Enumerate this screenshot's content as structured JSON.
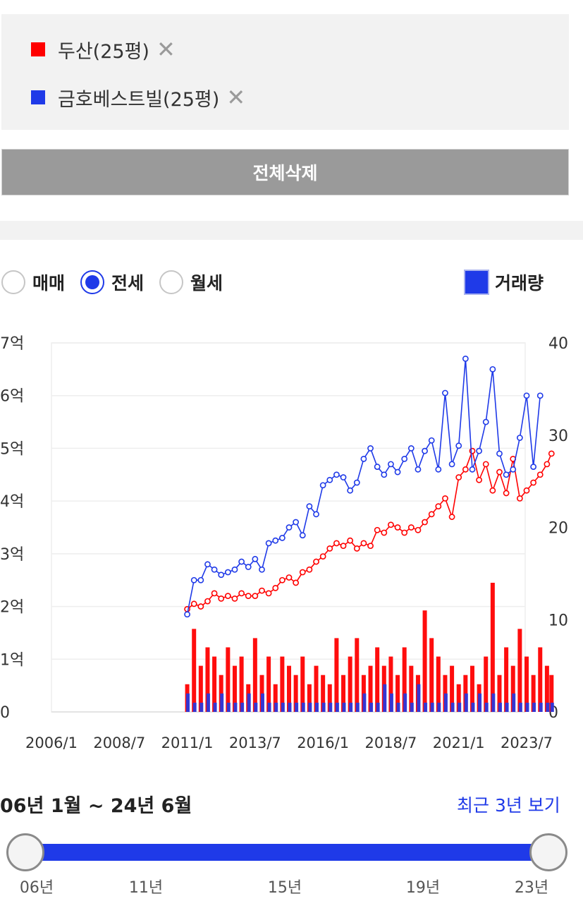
{
  "legend": {
    "items": [
      {
        "label": "두산(25평)",
        "color": "#ff0000",
        "remove": "✕"
      },
      {
        "label": "금호베스트빌(25평)",
        "color": "#1f3ae8",
        "remove": "✕"
      }
    ]
  },
  "delete_all_label": "전체삭제",
  "deal_type": {
    "options": [
      "매매",
      "전세",
      "월세"
    ],
    "selected": "전세"
  },
  "volume_toggle": {
    "label": "거래량",
    "checked": true
  },
  "range": {
    "text": "06년 1월 ~ 24년 6월",
    "recent_label": "최근 3년 보기",
    "ticks": [
      "06년",
      "11년",
      "15년",
      "19년",
      "23년"
    ]
  },
  "chart_data": {
    "type": "line",
    "x_ticks": [
      "2006/1",
      "2008/7",
      "2011/1",
      "2013/7",
      "2016/1",
      "2018/7",
      "2021/1",
      "2023/7"
    ],
    "y_left": {
      "range": [
        0,
        7
      ],
      "ticks": [
        "0",
        "1억",
        "2억",
        "3억",
        "4억",
        "5억",
        "6억",
        "7억"
      ]
    },
    "y_right": {
      "range": [
        0,
        40
      ],
      "ticks": [
        "0",
        "10",
        "20",
        "30",
        "40"
      ]
    },
    "grid": true,
    "series": [
      {
        "name": "두산(25평)",
        "color": "#ff0000",
        "price_points": [
          [
            "2011/1",
            1.95
          ],
          [
            "2011/4",
            2.05
          ],
          [
            "2011/7",
            2.0
          ],
          [
            "2011/10",
            2.1
          ],
          [
            "2012/1",
            2.25
          ],
          [
            "2012/4",
            2.15
          ],
          [
            "2012/7",
            2.2
          ],
          [
            "2012/10",
            2.15
          ],
          [
            "2013/1",
            2.25
          ],
          [
            "2013/4",
            2.2
          ],
          [
            "2013/7",
            2.2
          ],
          [
            "2013/10",
            2.3
          ],
          [
            "2014/1",
            2.25
          ],
          [
            "2014/4",
            2.35
          ],
          [
            "2014/7",
            2.5
          ],
          [
            "2014/10",
            2.55
          ],
          [
            "2015/1",
            2.45
          ],
          [
            "2015/4",
            2.65
          ],
          [
            "2015/7",
            2.7
          ],
          [
            "2015/10",
            2.85
          ],
          [
            "2016/1",
            2.95
          ],
          [
            "2016/4",
            3.1
          ],
          [
            "2016/7",
            3.2
          ],
          [
            "2016/10",
            3.15
          ],
          [
            "2017/1",
            3.25
          ],
          [
            "2017/4",
            3.1
          ],
          [
            "2017/7",
            3.2
          ],
          [
            "2017/10",
            3.15
          ],
          [
            "2018/1",
            3.45
          ],
          [
            "2018/4",
            3.4
          ],
          [
            "2018/7",
            3.55
          ],
          [
            "2018/10",
            3.5
          ],
          [
            "2019/1",
            3.4
          ],
          [
            "2019/4",
            3.5
          ],
          [
            "2019/7",
            3.45
          ],
          [
            "2019/10",
            3.6
          ],
          [
            "2020/1",
            3.75
          ],
          [
            "2020/4",
            3.9
          ],
          [
            "2020/7",
            4.05
          ],
          [
            "2020/10",
            3.7
          ],
          [
            "2021/1",
            4.45
          ],
          [
            "2021/4",
            4.6
          ],
          [
            "2021/7",
            4.95
          ],
          [
            "2021/10",
            4.4
          ],
          [
            "2022/1",
            4.7
          ],
          [
            "2022/4",
            4.2
          ],
          [
            "2022/7",
            4.55
          ],
          [
            "2022/10",
            4.15
          ],
          [
            "2023/1",
            4.8
          ],
          [
            "2023/4",
            4.05
          ],
          [
            "2023/7",
            4.2
          ],
          [
            "2023/10",
            4.35
          ],
          [
            "2024/1",
            4.5
          ],
          [
            "2024/4",
            4.7
          ],
          [
            "2024/6",
            4.9
          ]
        ],
        "volume_bars": [
          [
            "2011/1",
            3
          ],
          [
            "2011/4",
            9
          ],
          [
            "2011/7",
            5
          ],
          [
            "2011/10",
            7
          ],
          [
            "2012/1",
            6
          ],
          [
            "2012/4",
            4
          ],
          [
            "2012/7",
            7
          ],
          [
            "2012/10",
            5
          ],
          [
            "2013/1",
            6
          ],
          [
            "2013/4",
            3
          ],
          [
            "2013/7",
            8
          ],
          [
            "2013/10",
            4
          ],
          [
            "2014/1",
            6
          ],
          [
            "2014/4",
            3
          ],
          [
            "2014/7",
            6
          ],
          [
            "2014/10",
            5
          ],
          [
            "2015/1",
            4
          ],
          [
            "2015/4",
            6
          ],
          [
            "2015/7",
            3
          ],
          [
            "2015/10",
            5
          ],
          [
            "2016/1",
            4
          ],
          [
            "2016/4",
            3
          ],
          [
            "2016/7",
            8
          ],
          [
            "2016/10",
            4
          ],
          [
            "2017/1",
            6
          ],
          [
            "2017/4",
            8
          ],
          [
            "2017/7",
            4
          ],
          [
            "2017/10",
            5
          ],
          [
            "2018/1",
            7
          ],
          [
            "2018/4",
            5
          ],
          [
            "2018/7",
            6
          ],
          [
            "2018/10",
            4
          ],
          [
            "2019/1",
            7
          ],
          [
            "2019/4",
            5
          ],
          [
            "2019/7",
            4
          ],
          [
            "2019/10",
            11
          ],
          [
            "2020/1",
            8
          ],
          [
            "2020/4",
            6
          ],
          [
            "2020/7",
            4
          ],
          [
            "2020/10",
            5
          ],
          [
            "2021/1",
            3
          ],
          [
            "2021/4",
            4
          ],
          [
            "2021/7",
            5
          ],
          [
            "2021/10",
            3
          ],
          [
            "2022/1",
            6
          ],
          [
            "2022/4",
            14
          ],
          [
            "2022/7",
            4
          ],
          [
            "2022/10",
            7
          ],
          [
            "2023/1",
            5
          ],
          [
            "2023/4",
            9
          ],
          [
            "2023/7",
            6
          ],
          [
            "2023/10",
            4
          ],
          [
            "2024/1",
            7
          ],
          [
            "2024/4",
            5
          ],
          [
            "2024/6",
            4
          ]
        ]
      },
      {
        "name": "금호베스트빌(25평)",
        "color": "#1f3ae8",
        "price_points": [
          [
            "2011/1",
            1.85
          ],
          [
            "2011/4",
            2.5
          ],
          [
            "2011/7",
            2.5
          ],
          [
            "2011/10",
            2.8
          ],
          [
            "2012/1",
            2.7
          ],
          [
            "2012/4",
            2.6
          ],
          [
            "2012/7",
            2.65
          ],
          [
            "2012/10",
            2.7
          ],
          [
            "2013/1",
            2.85
          ],
          [
            "2013/4",
            2.75
          ],
          [
            "2013/7",
            2.9
          ],
          [
            "2013/10",
            2.7
          ],
          [
            "2014/1",
            3.2
          ],
          [
            "2014/4",
            3.25
          ],
          [
            "2014/7",
            3.3
          ],
          [
            "2014/10",
            3.5
          ],
          [
            "2015/1",
            3.6
          ],
          [
            "2015/4",
            3.35
          ],
          [
            "2015/7",
            3.9
          ],
          [
            "2015/10",
            3.75
          ],
          [
            "2016/1",
            4.3
          ],
          [
            "2016/4",
            4.4
          ],
          [
            "2016/7",
            4.5
          ],
          [
            "2016/10",
            4.45
          ],
          [
            "2017/1",
            4.2
          ],
          [
            "2017/4",
            4.35
          ],
          [
            "2017/7",
            4.8
          ],
          [
            "2017/10",
            5.0
          ],
          [
            "2018/1",
            4.65
          ],
          [
            "2018/4",
            4.5
          ],
          [
            "2018/7",
            4.7
          ],
          [
            "2018/10",
            4.55
          ],
          [
            "2019/1",
            4.8
          ],
          [
            "2019/4",
            5.0
          ],
          [
            "2019/7",
            4.6
          ],
          [
            "2019/10",
            4.95
          ],
          [
            "2020/1",
            5.15
          ],
          [
            "2020/4",
            4.6
          ],
          [
            "2020/7",
            6.05
          ],
          [
            "2020/10",
            4.7
          ],
          [
            "2021/1",
            5.05
          ],
          [
            "2021/4",
            6.7
          ],
          [
            "2021/7",
            4.6
          ],
          [
            "2021/10",
            4.95
          ],
          [
            "2022/1",
            5.5
          ],
          [
            "2022/4",
            6.5
          ],
          [
            "2022/7",
            4.9
          ],
          [
            "2022/10",
            4.5
          ],
          [
            "2023/1",
            4.6
          ],
          [
            "2023/4",
            5.2
          ],
          [
            "2023/7",
            6.0
          ],
          [
            "2023/10",
            4.65
          ],
          [
            "2024/1",
            6.0
          ]
        ],
        "volume_bars": [
          [
            "2011/1",
            2
          ],
          [
            "2011/4",
            1
          ],
          [
            "2011/7",
            1
          ],
          [
            "2011/10",
            2
          ],
          [
            "2012/1",
            1
          ],
          [
            "2012/4",
            2
          ],
          [
            "2012/7",
            1
          ],
          [
            "2012/10",
            1
          ],
          [
            "2013/1",
            1
          ],
          [
            "2013/4",
            2
          ],
          [
            "2013/7",
            1
          ],
          [
            "2013/10",
            2
          ],
          [
            "2014/1",
            1
          ],
          [
            "2014/4",
            1
          ],
          [
            "2014/7",
            1
          ],
          [
            "2014/10",
            1
          ],
          [
            "2015/1",
            1
          ],
          [
            "2015/4",
            1
          ],
          [
            "2015/7",
            1
          ],
          [
            "2015/10",
            1
          ],
          [
            "2016/1",
            1
          ],
          [
            "2016/4",
            1
          ],
          [
            "2016/7",
            1
          ],
          [
            "2016/10",
            1
          ],
          [
            "2017/1",
            1
          ],
          [
            "2017/4",
            1
          ],
          [
            "2017/7",
            2
          ],
          [
            "2017/10",
            1
          ],
          [
            "2018/1",
            1
          ],
          [
            "2018/4",
            3
          ],
          [
            "2018/7",
            2
          ],
          [
            "2018/10",
            1
          ],
          [
            "2019/1",
            2
          ],
          [
            "2019/4",
            1
          ],
          [
            "2019/7",
            3
          ],
          [
            "2019/10",
            1
          ],
          [
            "2020/1",
            1
          ],
          [
            "2020/4",
            1
          ],
          [
            "2020/7",
            2
          ],
          [
            "2020/10",
            1
          ],
          [
            "2021/1",
            1
          ],
          [
            "2021/4",
            2
          ],
          [
            "2021/7",
            1
          ],
          [
            "2021/10",
            2
          ],
          [
            "2022/1",
            1
          ],
          [
            "2022/4",
            2
          ],
          [
            "2022/7",
            1
          ],
          [
            "2022/10",
            1
          ],
          [
            "2023/1",
            2
          ],
          [
            "2023/4",
            1
          ],
          [
            "2023/7",
            1
          ],
          [
            "2023/10",
            1
          ],
          [
            "2024/1",
            1
          ],
          [
            "2024/4",
            1
          ],
          [
            "2024/6",
            1
          ]
        ]
      }
    ]
  }
}
